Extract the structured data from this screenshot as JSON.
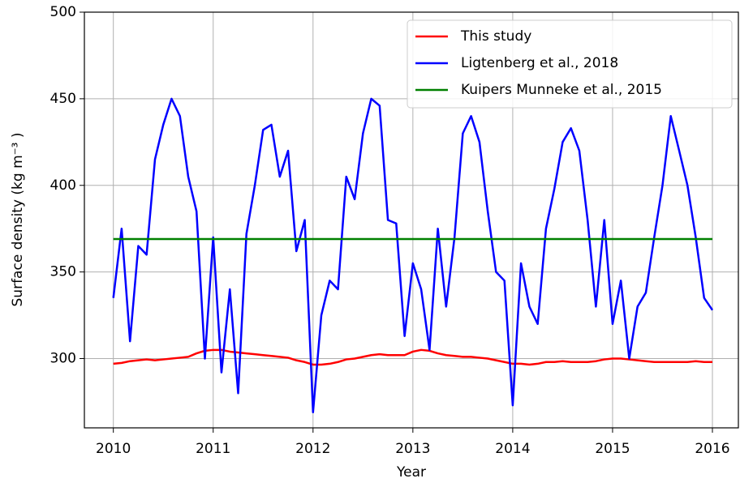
{
  "chart_data": {
    "type": "line",
    "xlabel": "Year",
    "ylabel": "Surface density (kg m⁻³ )",
    "x": [
      2010,
      2010.083,
      2010.167,
      2010.25,
      2010.333,
      2010.417,
      2010.5,
      2010.583,
      2010.667,
      2010.75,
      2010.833,
      2010.917,
      2011,
      2011.083,
      2011.167,
      2011.25,
      2011.333,
      2011.417,
      2011.5,
      2011.583,
      2011.667,
      2011.75,
      2011.833,
      2011.917,
      2012,
      2012.083,
      2012.167,
      2012.25,
      2012.333,
      2012.417,
      2012.5,
      2012.583,
      2012.667,
      2012.75,
      2012.833,
      2012.917,
      2013,
      2013.083,
      2013.167,
      2013.25,
      2013.333,
      2013.417,
      2013.5,
      2013.583,
      2013.667,
      2013.75,
      2013.833,
      2013.917,
      2014,
      2014.083,
      2014.167,
      2014.25,
      2014.333,
      2014.417,
      2014.5,
      2014.583,
      2014.667,
      2014.75,
      2014.833,
      2014.917,
      2015,
      2015.083,
      2015.167,
      2015.25,
      2015.333,
      2015.417,
      2015.5,
      2015.583,
      2015.667,
      2015.75,
      2015.833,
      2015.917,
      2016
    ],
    "series": [
      {
        "name": "This study",
        "color": "#ff0000",
        "values": [
          297,
          297.5,
          298.5,
          299,
          299.5,
          299,
          299.5,
          300,
          300.5,
          301,
          303,
          304.5,
          305,
          305,
          304,
          303.5,
          303,
          302.5,
          302,
          301.5,
          301,
          300.5,
          299,
          298,
          296.5,
          296.5,
          297,
          298,
          299.5,
          300,
          301,
          302,
          302.5,
          302,
          302,
          302,
          304,
          305,
          304.5,
          303,
          302,
          301.5,
          301,
          301,
          300.5,
          300,
          299,
          298,
          297,
          297,
          296.5,
          297,
          298,
          298,
          298.5,
          298,
          298,
          298,
          298.5,
          299.5,
          300,
          300,
          299.5,
          299,
          298.5,
          298,
          298,
          298,
          298,
          298,
          298.5,
          298,
          298
        ]
      },
      {
        "name": "Ligtenberg et al., 2018",
        "color": "#0000ff",
        "values": [
          335,
          375,
          310,
          365,
          360,
          415,
          435,
          450,
          440,
          405,
          385,
          300,
          370,
          292,
          340,
          280,
          372,
          400,
          432,
          435,
          405,
          420,
          362,
          380,
          269,
          325,
          345,
          340,
          405,
          392,
          430,
          450,
          446,
          380,
          378,
          313,
          355,
          340,
          305,
          375,
          330,
          370,
          430,
          440,
          425,
          385,
          350,
          345,
          273,
          355,
          330,
          320,
          375,
          398,
          425,
          433,
          420,
          380,
          330,
          380,
          320,
          345,
          300,
          330,
          338,
          370,
          400,
          440,
          420,
          400,
          370,
          335,
          328
        ]
      },
      {
        "name": "Kuipers Munneke et al., 2015",
        "color": "#008000",
        "values": [
          369,
          369,
          369,
          369,
          369,
          369,
          369,
          369,
          369,
          369,
          369,
          369,
          369,
          369,
          369,
          369,
          369,
          369,
          369,
          369,
          369,
          369,
          369,
          369,
          369,
          369,
          369,
          369,
          369,
          369,
          369,
          369,
          369,
          369,
          369,
          369,
          369,
          369,
          369,
          369,
          369,
          369,
          369,
          369,
          369,
          369,
          369,
          369,
          369,
          369,
          369,
          369,
          369,
          369,
          369,
          369,
          369,
          369,
          369,
          369,
          369,
          369,
          369,
          369,
          369,
          369,
          369,
          369,
          369,
          369,
          369,
          369,
          369
        ]
      }
    ],
    "xlim": [
      2009.71,
      2016.26
    ],
    "xticks": [
      2010,
      2011,
      2012,
      2013,
      2014,
      2015,
      2016
    ],
    "ylim": [
      260,
      500
    ],
    "yticks": [
      300,
      350,
      400,
      450,
      500
    ],
    "grid": true,
    "legend": "upper right"
  }
}
